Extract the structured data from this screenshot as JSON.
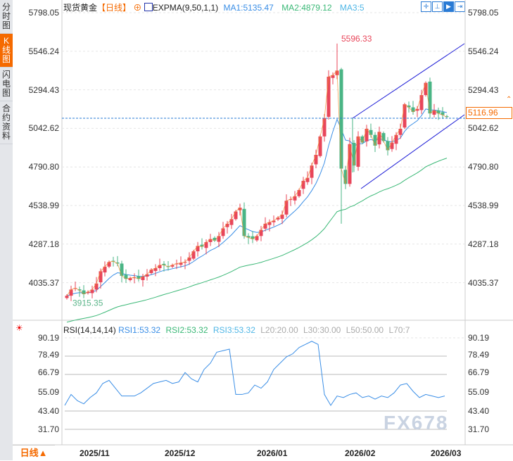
{
  "sidebar": {
    "tabs": [
      {
        "label": "分时图"
      },
      {
        "label": "K线图",
        "active": true
      },
      {
        "label": "闪电图"
      },
      {
        "label": "合约资料"
      }
    ]
  },
  "header": {
    "symbol": "现货黄金",
    "period": "【日线】",
    "indicator": "EXPMA(9,50,1,1)",
    "ma1": "MA1:5135.47",
    "ma2": "MA2:4879.12",
    "ma3": "MA3:5"
  },
  "toolbar": {
    "icons": [
      "crosshair-icon",
      "zoom-range-icon",
      "play-icon",
      "exit-icon"
    ]
  },
  "price_axis": [
    "5798.05",
    "5546.24",
    "5294.43",
    "5042.62",
    "4790.80",
    "4538.99",
    "4287.18",
    "4035.37"
  ],
  "current_price": "5116.96",
  "high_label": "5596.33",
  "low_label": "3915.35",
  "rsi_header": {
    "name": "RSI(14,14,14)",
    "rsi1": "RSI1:53.32",
    "rsi2": "RSI2:53.32",
    "rsi3": "RSI3:53.32",
    "l20": "L20:20.00",
    "l30": "L30:30.00",
    "l50": "L50:50.00",
    "l70": "L70:7"
  },
  "rsi_axis": [
    "90.19",
    "78.49",
    "66.79",
    "55.09",
    "43.40",
    "31.70"
  ],
  "time_axis": [
    "2025/11",
    "2025/12",
    "2026/01",
    "2026/02",
    "2026/03"
  ],
  "period_button": "日线▲",
  "watermark": "FX678",
  "colors": {
    "up": "#e8465a",
    "down": "#4ab585",
    "ema9": "#3a8ee6",
    "ema50": "#3ab876",
    "close_line": "#f08a24",
    "channel": "#1a1ad6",
    "accent": "#f56a00"
  },
  "chart_data": {
    "type": "candlestick",
    "ylim": [
      3915.35,
      5798.05
    ],
    "closes": [
      3950,
      3990,
      4000,
      3985,
      3960,
      3975,
      3990,
      4030,
      4110,
      4140,
      4170,
      4175,
      4160,
      4080,
      4060,
      4065,
      4070,
      4060,
      4075,
      4090,
      4120,
      4130,
      4150,
      4150,
      4140,
      4150,
      4160,
      4165,
      4170,
      4200,
      4240,
      4275,
      4270,
      4300,
      4320,
      4310,
      4340,
      4390,
      4420,
      4450,
      4500,
      4525,
      4340,
      4330,
      4320,
      4340,
      4380,
      4420,
      4430,
      4440,
      4460,
      4480,
      4570,
      4580,
      4600,
      4640,
      4700,
      4720,
      4800,
      4870,
      4990,
      5110,
      5380,
      5390,
      5420,
      4780,
      4680,
      4940,
      4800,
      4990,
      4950,
      5040,
      5000,
      4930,
      5020,
      4960,
      4900,
      4950,
      5000,
      5040,
      5200,
      5180,
      5150,
      5170,
      5260,
      5340,
      5140,
      5160,
      5140,
      5130,
      5116.96
    ],
    "high_index": 64,
    "low_index": 1,
    "rsi": [
      47,
      54,
      50,
      48,
      52,
      55,
      61,
      63,
      58,
      53,
      53,
      53,
      55,
      58,
      61,
      62,
      63,
      61,
      62,
      68,
      64,
      62,
      70,
      74,
      81,
      82,
      83,
      54,
      54,
      55,
      60,
      58,
      62,
      70,
      74,
      78,
      80,
      84,
      86,
      88,
      86,
      54,
      47,
      53,
      52,
      54,
      55,
      52,
      53,
      51,
      53,
      52,
      55,
      60,
      61,
      56,
      52,
      54,
      53,
      52,
      53
    ],
    "rsi_ylim": [
      20,
      95
    ]
  }
}
